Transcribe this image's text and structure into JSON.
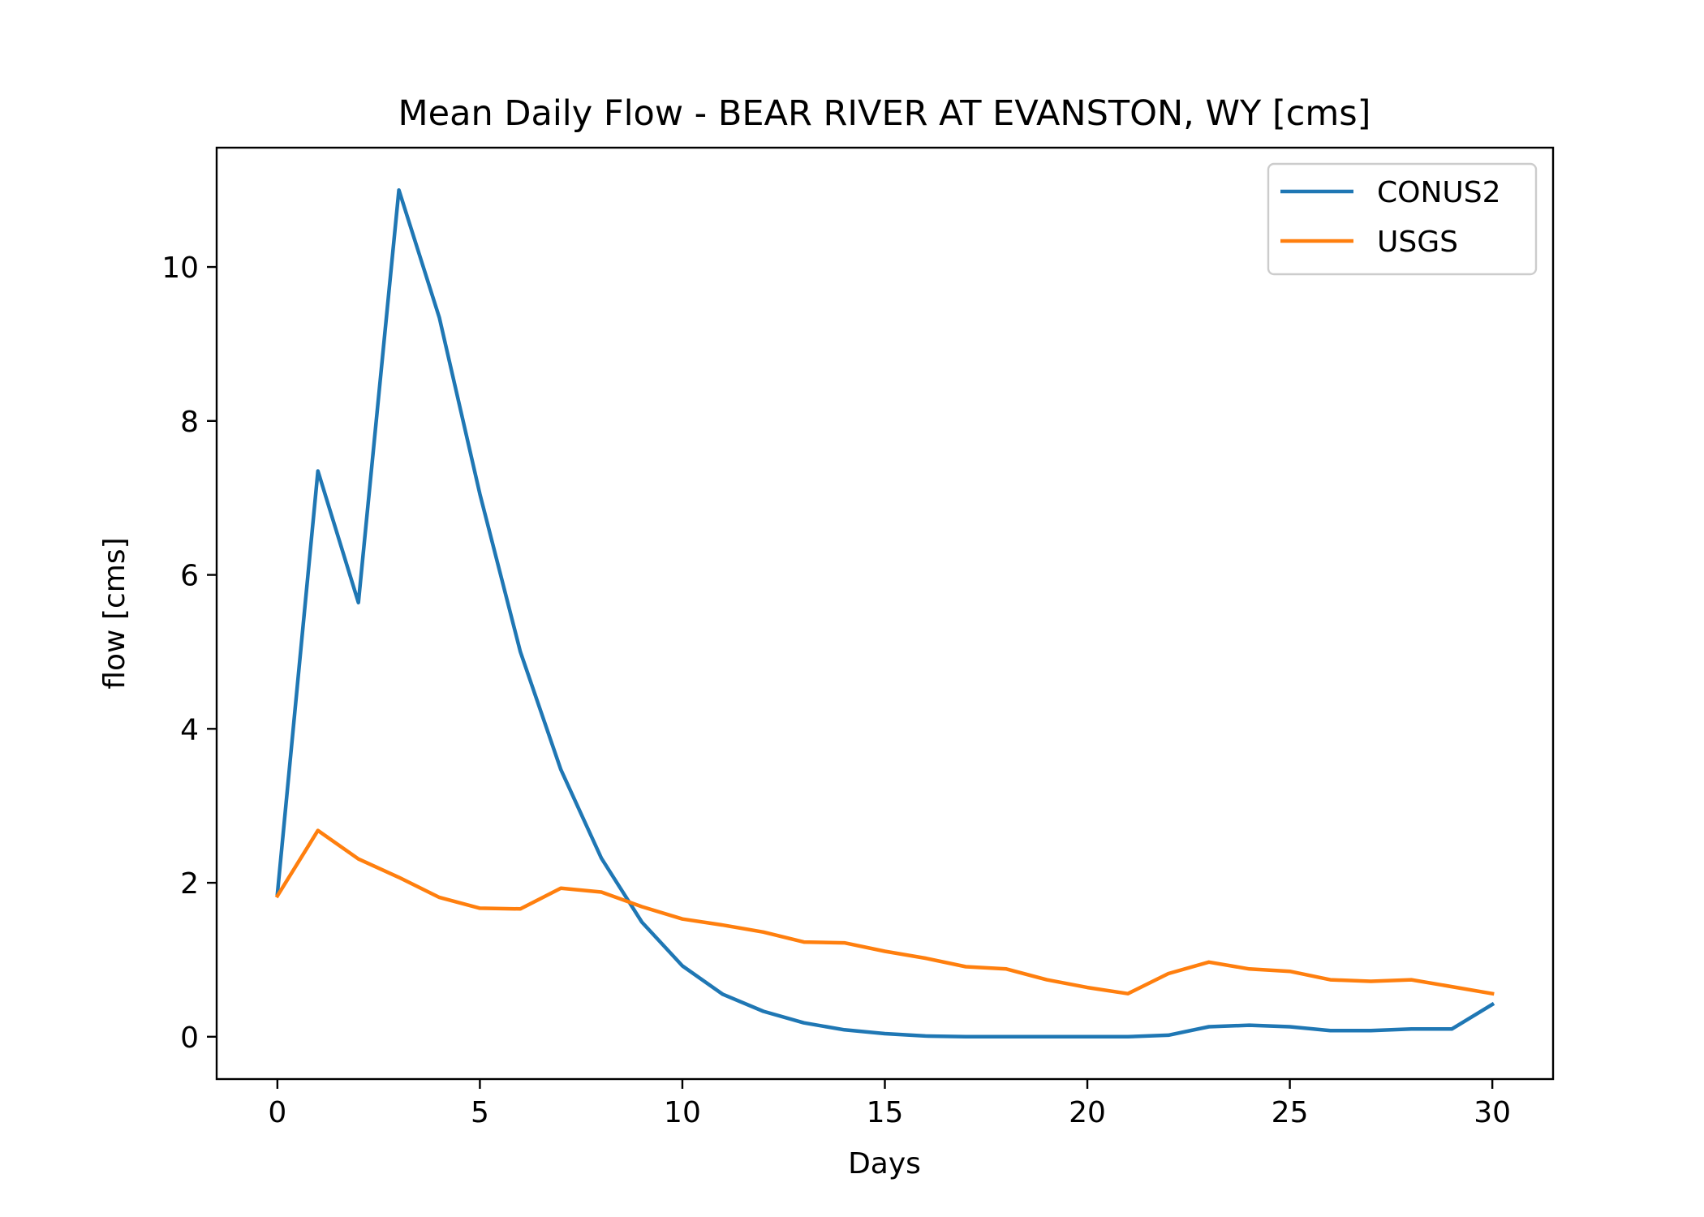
{
  "chart_data": {
    "type": "line",
    "title": "Mean Daily Flow - BEAR RIVER AT EVANSTON, WY [cms]",
    "xlabel": "Days",
    "ylabel": "flow [cms]",
    "xlim": [
      -1.5,
      31.5
    ],
    "ylim": [
      -0.55,
      11.55
    ],
    "xticks": [
      0,
      5,
      10,
      15,
      20,
      25,
      30
    ],
    "yticks": [
      0,
      2,
      4,
      6,
      8,
      10
    ],
    "grid": false,
    "legend": "top-right",
    "x": [
      0,
      1,
      2,
      3,
      4,
      5,
      6,
      7,
      8,
      9,
      10,
      11,
      12,
      13,
      14,
      15,
      16,
      17,
      18,
      19,
      20,
      21,
      22,
      23,
      24,
      25,
      26,
      27,
      28,
      29,
      30
    ],
    "series": [
      {
        "name": "CONUS2",
        "color": "#1f77b4",
        "values": [
          1.86,
          7.35,
          5.64,
          11.0,
          9.34,
          7.05,
          5.0,
          3.47,
          2.32,
          1.49,
          0.92,
          0.55,
          0.33,
          0.18,
          0.09,
          0.04,
          0.01,
          0.0,
          0.0,
          0.0,
          0.0,
          0.0,
          0.02,
          0.13,
          0.15,
          0.13,
          0.08,
          0.08,
          0.1,
          0.1,
          0.42
        ]
      },
      {
        "name": "USGS",
        "color": "#ff7f0e",
        "values": [
          1.83,
          2.68,
          2.31,
          2.07,
          1.81,
          1.67,
          1.66,
          1.93,
          1.88,
          1.69,
          1.53,
          1.45,
          1.36,
          1.23,
          1.22,
          1.11,
          1.02,
          0.91,
          0.88,
          0.74,
          0.64,
          0.56,
          0.82,
          0.97,
          0.88,
          0.85,
          0.74,
          0.72,
          0.74,
          0.65,
          0.56
        ]
      }
    ]
  }
}
